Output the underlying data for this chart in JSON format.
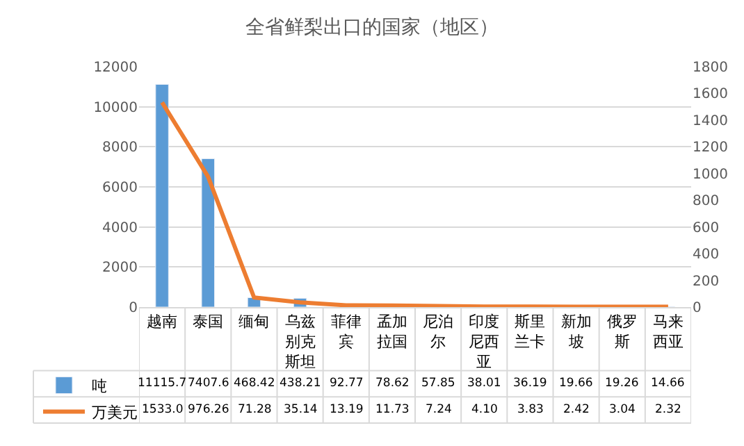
{
  "chart_data": {
    "type": "bar",
    "title": "全省鲜梨出口的国家（地区）",
    "categories": [
      "越南",
      "泰国",
      "缅甸",
      "乌兹别克斯坦",
      "菲律宾",
      "孟加拉国",
      "尼泊尔",
      "印度尼西亚",
      "斯里兰卡",
      "新加坡",
      "俄罗斯",
      "马来西亚"
    ],
    "series": [
      {
        "name": "吨",
        "color": "#5b9bd5",
        "values": [
          11115.7,
          7407.6,
          468.42,
          438.21,
          92.77,
          78.62,
          57.85,
          38.01,
          36.19,
          19.66,
          19.26,
          14.66
        ],
        "value_labels": [
          "11115.7",
          "7407.6",
          "468.42",
          "438.21",
          "92.77",
          "78.62",
          "57.85",
          "38.01",
          "36.19",
          "19.66",
          "19.26",
          "14.66"
        ]
      },
      {
        "name": "万美元",
        "type": "line",
        "axis": "y2",
        "color": "#ed7d31",
        "values": [
          1533.0,
          976.26,
          71.28,
          35.14,
          13.19,
          11.73,
          7.24,
          4.1,
          3.83,
          2.42,
          3.04,
          2.32
        ],
        "value_labels": [
          "1533.0",
          "976.26",
          "71.28",
          "35.14",
          "13.19",
          "11.73",
          "7.24",
          "4.10",
          "3.83",
          "2.42",
          "3.04",
          "2.32"
        ]
      }
    ],
    "ylim": [
      0,
      12000
    ],
    "yticks": [
      0,
      2000,
      4000,
      6000,
      8000,
      10000,
      12000
    ],
    "y2lim": [
      0,
      1800
    ],
    "y2ticks": [
      0,
      200,
      400,
      600,
      800,
      1000,
      1200,
      1400,
      1600,
      1800
    ],
    "grid": "y",
    "legend": "bottom left",
    "line_style": "solid",
    "marker": "none"
  }
}
